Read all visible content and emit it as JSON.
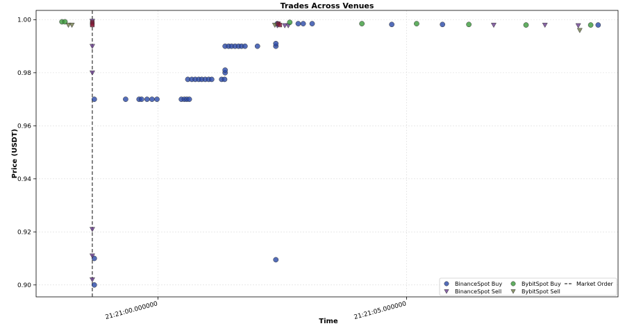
{
  "chart_data": {
    "type": "scatter",
    "title": "Trades Across Venues",
    "xlabel": "Time",
    "ylabel": "Price (USDT)",
    "x_unit": "seconds after 21:21:00.000000",
    "xlim": [
      -2.45,
      9.25
    ],
    "ylim": [
      0.8955,
      1.0035
    ],
    "yticks": [
      0.9,
      0.92,
      0.94,
      0.96,
      0.98,
      1.0
    ],
    "ytick_labels": [
      "0.90",
      "0.92",
      "0.94",
      "0.96",
      "0.98",
      "1.00"
    ],
    "xticks": [
      0,
      5
    ],
    "xtick_labels": [
      "21:21:00.000000",
      "21:21:05.000000"
    ],
    "grid": true,
    "legend_position": "lower-right",
    "colors": {
      "BinanceSpot Buy": "#2948a8",
      "BinanceSpot Sell": "#6a3d8f",
      "BybitSpot Buy": "#3b9a3b",
      "BybitSpot Sell": "#6f7a4a",
      "Market Order": "#333333",
      "Market Order Fills": "#8b1a3a"
    },
    "series": [
      {
        "name": "BinanceSpot Buy",
        "marker": "circle",
        "points": [
          [
            -1.28,
            0.97
          ],
          [
            -0.65,
            0.97
          ],
          [
            -0.38,
            0.97
          ],
          [
            -0.33,
            0.97
          ],
          [
            -0.22,
            0.97
          ],
          [
            -0.12,
            0.97
          ],
          [
            -0.02,
            0.97
          ],
          [
            0.47,
            0.97
          ],
          [
            0.53,
            0.97
          ],
          [
            0.58,
            0.97
          ],
          [
            0.63,
            0.97
          ],
          [
            0.6,
            0.9775
          ],
          [
            0.68,
            0.9775
          ],
          [
            0.75,
            0.9775
          ],
          [
            0.82,
            0.9775
          ],
          [
            0.88,
            0.9775
          ],
          [
            0.95,
            0.9775
          ],
          [
            1.02,
            0.9775
          ],
          [
            1.08,
            0.9775
          ],
          [
            1.28,
            0.9775
          ],
          [
            1.34,
            0.9775
          ],
          [
            1.35,
            0.98
          ],
          [
            1.35,
            0.981
          ],
          [
            1.35,
            0.99
          ],
          [
            1.42,
            0.99
          ],
          [
            1.48,
            0.99
          ],
          [
            1.55,
            0.99
          ],
          [
            1.62,
            0.99
          ],
          [
            1.68,
            0.99
          ],
          [
            1.75,
            0.99
          ],
          [
            2.0,
            0.99
          ],
          [
            2.37,
            0.99
          ],
          [
            2.37,
            0.991
          ],
          [
            2.37,
            0.9095
          ],
          [
            2.4,
            0.9985
          ],
          [
            2.82,
            0.9985
          ],
          [
            2.92,
            0.9985
          ],
          [
            3.1,
            0.9985
          ],
          [
            4.7,
            0.9982
          ],
          [
            5.72,
            0.9982
          ],
          [
            8.85,
            0.998
          ],
          [
            -1.28,
            0.91
          ],
          [
            -1.28,
            0.9
          ]
        ]
      },
      {
        "name": "BinanceSpot Sell",
        "marker": "triangle-down",
        "points": [
          [
            -1.32,
            0.9995
          ],
          [
            -1.32,
            0.99
          ],
          [
            -1.32,
            0.98
          ],
          [
            -1.32,
            0.921
          ],
          [
            -1.32,
            0.911
          ],
          [
            -1.32,
            0.902
          ],
          [
            2.4,
            0.9978
          ],
          [
            2.55,
            0.9978
          ],
          [
            2.62,
            0.9978
          ],
          [
            6.75,
            0.998
          ],
          [
            7.78,
            0.998
          ],
          [
            8.45,
            0.9978
          ]
        ]
      },
      {
        "name": "BybitSpot Buy",
        "marker": "circle",
        "points": [
          [
            -1.93,
            0.9992
          ],
          [
            -1.87,
            0.9992
          ],
          [
            2.65,
            0.999
          ],
          [
            4.1,
            0.9985
          ],
          [
            5.2,
            0.9985
          ],
          [
            6.25,
            0.9982
          ],
          [
            7.4,
            0.998
          ],
          [
            8.7,
            0.998
          ]
        ]
      },
      {
        "name": "BybitSpot Sell",
        "marker": "triangle-down",
        "points": [
          [
            -1.8,
            0.998
          ],
          [
            -1.73,
            0.998
          ],
          [
            2.35,
            0.998
          ],
          [
            8.48,
            0.996
          ]
        ]
      },
      {
        "name": "Market Order Fills",
        "marker": "square",
        "points": [
          [
            -1.32,
            0.999
          ],
          [
            -1.32,
            0.9985
          ],
          [
            -1.32,
            0.998
          ],
          [
            2.42,
            0.9985
          ],
          [
            2.45,
            0.998
          ]
        ]
      }
    ],
    "market_order_x": -1.32,
    "legend": [
      {
        "label": "BinanceSpot Buy",
        "marker": "circle"
      },
      {
        "label": "BinanceSpot Sell",
        "marker": "triangle-down"
      },
      {
        "label": "BybitSpot Buy",
        "marker": "circle"
      },
      {
        "label": "BybitSpot Sell",
        "marker": "triangle-down"
      },
      {
        "label": "Market Order",
        "marker": "dashed-line"
      }
    ]
  }
}
